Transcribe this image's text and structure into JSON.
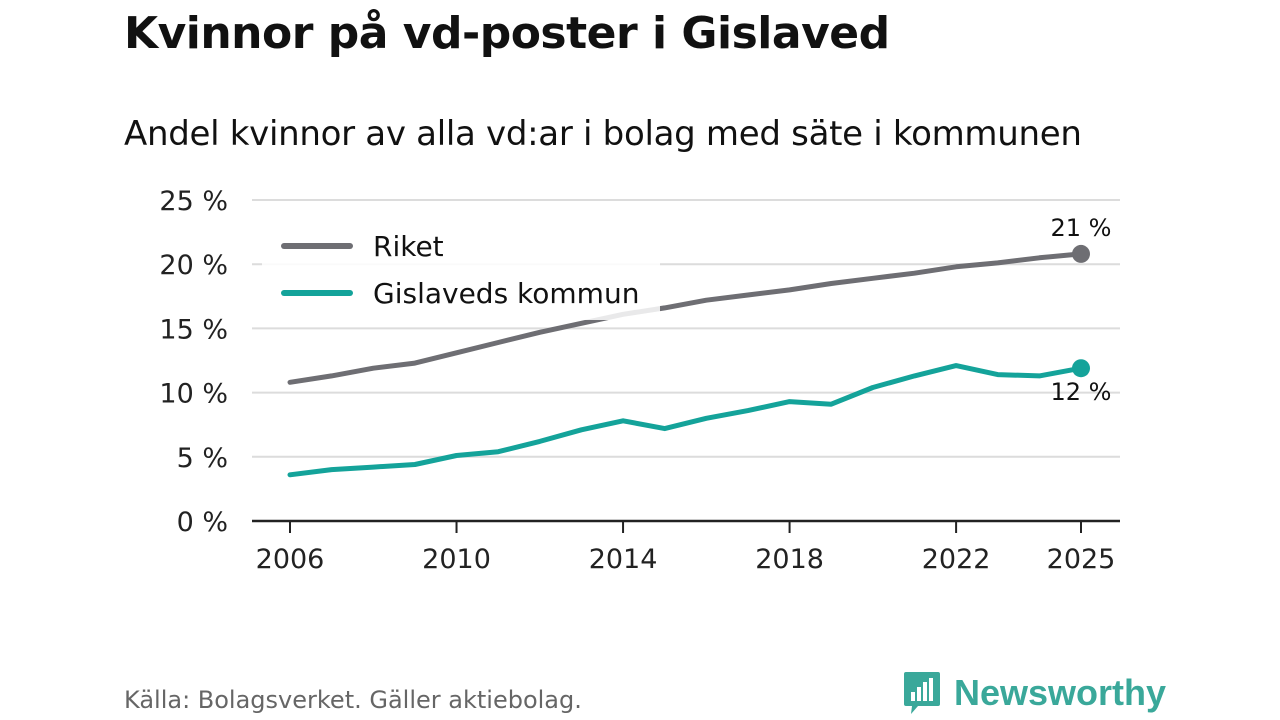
{
  "header": {
    "title": "Kvinnor på vd-poster i Gislaved",
    "subtitle": "Andel kvinnor av alla vd:ar i bolag med säte i kommunen"
  },
  "footer": {
    "source": "Källa: Bolagsverket. Gäller aktiebolag.",
    "brand": "Newsworthy",
    "brand_color": "#3aa89a"
  },
  "chart_data": {
    "type": "line",
    "title": "Kvinnor på vd-poster i Gislaved",
    "subtitle": "Andel kvinnor av alla vd:ar i bolag med säte i kommunen",
    "xlabel": "",
    "ylabel": "",
    "x": [
      2006,
      2007,
      2008,
      2009,
      2010,
      2011,
      2012,
      2013,
      2014,
      2015,
      2016,
      2017,
      2018,
      2019,
      2020,
      2021,
      2022,
      2023,
      2024,
      2025
    ],
    "xticks": [
      2006,
      2010,
      2014,
      2018,
      2022,
      2025
    ],
    "xtick_labels": [
      "2006",
      "2010",
      "2014",
      "2018",
      "2022",
      "2025"
    ],
    "ylim": [
      0,
      25
    ],
    "yticks": [
      0,
      5,
      10,
      15,
      20,
      25
    ],
    "ytick_labels": [
      "0 %",
      "5 %",
      "10 %",
      "15 %",
      "20 %",
      "25 %"
    ],
    "grid": true,
    "legend_position": "top-left",
    "series": [
      {
        "name": "Riket",
        "color": "#6e6e73",
        "values": [
          10.8,
          11.3,
          11.9,
          12.3,
          13.1,
          13.9,
          14.7,
          15.4,
          16.1,
          16.6,
          17.2,
          17.6,
          18.0,
          18.5,
          18.9,
          19.3,
          19.8,
          20.1,
          20.5,
          20.8
        ],
        "end_label": "21 %"
      },
      {
        "name": "Gislaveds kommun",
        "color": "#14a39a",
        "values": [
          3.6,
          4.0,
          4.2,
          4.4,
          5.1,
          5.4,
          6.2,
          7.1,
          7.8,
          7.2,
          8.0,
          8.6,
          9.3,
          9.1,
          10.4,
          11.3,
          12.1,
          11.4,
          11.3,
          11.9
        ],
        "end_label": "12 %"
      }
    ]
  }
}
